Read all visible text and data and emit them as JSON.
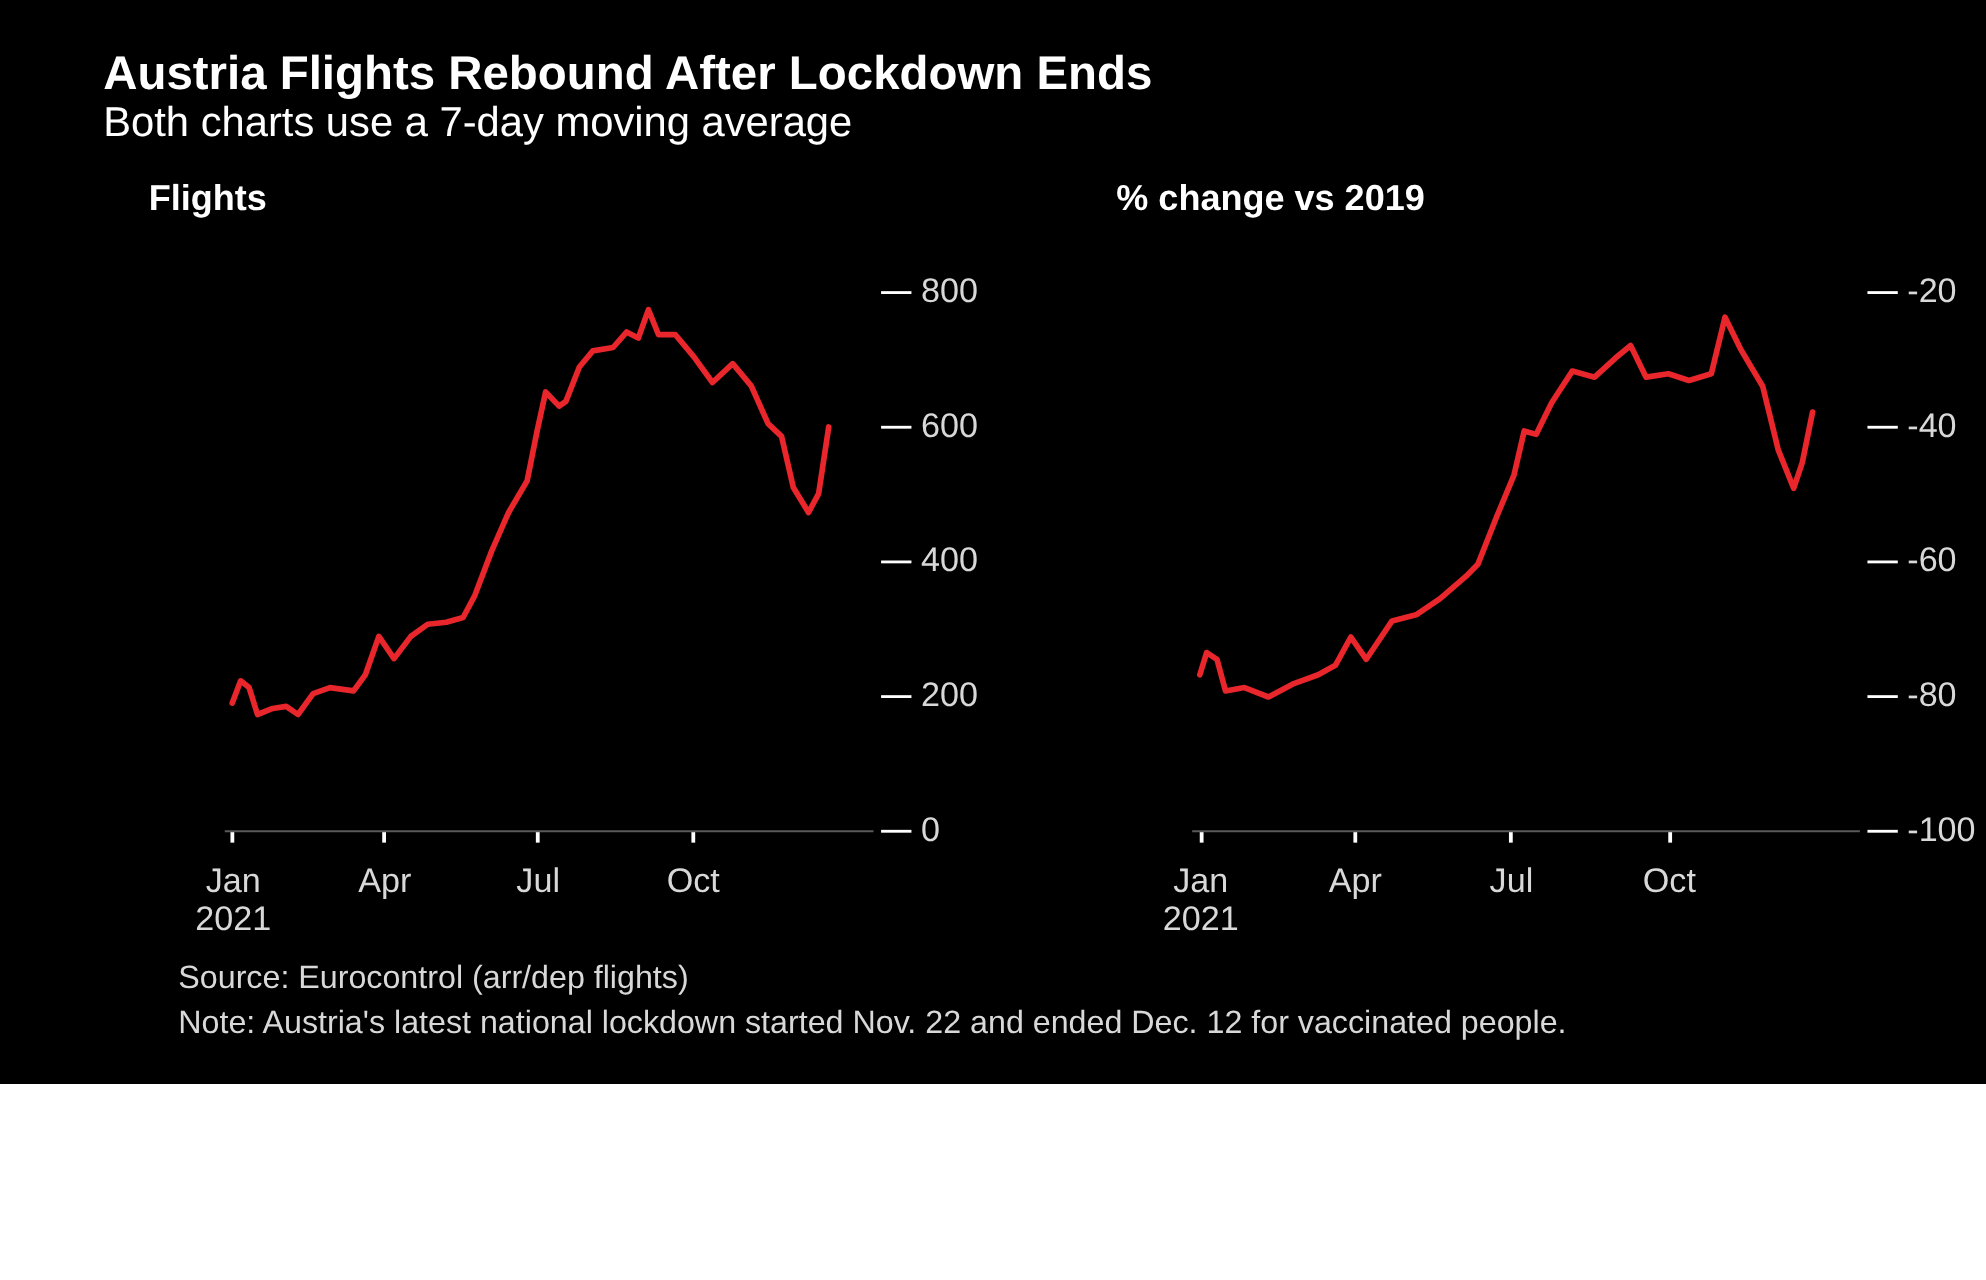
{
  "chart_data": [
    {
      "type": "line",
      "title": "Austria Flights Rebound After Lockdown Ends",
      "subtitle": "Both charts use a 7-day moving average",
      "ylabel": "Flights",
      "annotations": [
        "Source: Eurocontrol (arr/dep flights)",
        "Note: Austria's latest national lockdown started Nov. 22 and ended Dec. 12 for vaccinated people."
      ],
      "x": [
        "2021-01-01",
        "2021-01-06",
        "2021-01-11",
        "2021-01-16",
        "2021-01-25",
        "2021-02-02",
        "2021-02-09",
        "2021-02-18",
        "2021-02-28",
        "2021-03-14",
        "2021-03-21",
        "2021-03-29",
        "2021-04-07",
        "2021-04-17",
        "2021-04-27",
        "2021-05-08",
        "2021-05-18",
        "2021-05-25",
        "2021-06-04",
        "2021-06-14",
        "2021-06-25",
        "2021-07-01",
        "2021-07-06",
        "2021-07-14",
        "2021-07-18",
        "2021-07-26",
        "2021-08-03",
        "2021-08-15",
        "2021-08-23",
        "2021-08-30",
        "2021-09-05",
        "2021-09-11",
        "2021-09-21",
        "2021-10-02",
        "2021-10-13",
        "2021-10-25",
        "2021-11-05",
        "2021-11-15",
        "2021-11-23",
        "2021-11-30",
        "2021-12-09",
        "2021-12-15",
        "2021-12-21"
      ],
      "series": [
        {
          "color": "#e8262b",
          "values": [
            189,
            222,
            212,
            172,
            181,
            184,
            172,
            203,
            212,
            207,
            231,
            288,
            255,
            288,
            306,
            309,
            316,
            349,
            415,
            472,
            519,
            594,
            651,
            630,
            637,
            688,
            712,
            717,
            740,
            731,
            773,
            736,
            736,
            703,
            665,
            693,
            660,
            604,
            585,
            509,
            472,
            500,
            599
          ]
        }
      ],
      "xticks": [
        {
          "value": "2021-01-01",
          "label": "Jan\n2021"
        },
        {
          "value": "2021-04-01",
          "label": "Apr"
        },
        {
          "value": "2021-07-01",
          "label": "Jul"
        },
        {
          "value": "2021-10-01",
          "label": "Oct"
        }
      ],
      "xlim": [
        "2020-12-27",
        "2022-01-16"
      ],
      "ylim": [
        0,
        800
      ],
      "yticks": [
        0,
        200,
        400,
        600,
        800
      ],
      "line_style": "solid"
    },
    {
      "type": "line",
      "ylabel": "% change vs 2019",
      "x": [
        "2021-01-01",
        "2021-01-05",
        "2021-01-11",
        "2021-01-16",
        "2021-01-27",
        "2021-02-10",
        "2021-02-24",
        "2021-03-11",
        "2021-03-21",
        "2021-03-30",
        "2021-04-08",
        "2021-04-23",
        "2021-05-07",
        "2021-05-21",
        "2021-06-05",
        "2021-06-12",
        "2021-06-23",
        "2021-07-03",
        "2021-07-09",
        "2021-07-16",
        "2021-07-25",
        "2021-08-06",
        "2021-08-19",
        "2021-08-31",
        "2021-09-09",
        "2021-09-18",
        "2021-10-01",
        "2021-10-13",
        "2021-10-26",
        "2021-11-03",
        "2021-11-12",
        "2021-11-25",
        "2021-12-04",
        "2021-12-13",
        "2021-12-18",
        "2021-12-24"
      ],
      "series": [
        {
          "color": "#e8262b",
          "values": [
            -76.9,
            -73.6,
            -74.6,
            -79.3,
            -78.8,
            -80.2,
            -78.3,
            -76.9,
            -75.5,
            -71.3,
            -74.6,
            -68.9,
            -68.0,
            -65.6,
            -62.3,
            -60.5,
            -53.4,
            -47.3,
            -40.7,
            -41.2,
            -36.5,
            -31.8,
            -32.7,
            -29.9,
            -28.0,
            -32.7,
            -32.2,
            -33.2,
            -32.2,
            -23.8,
            -28.5,
            -34.1,
            -43.5,
            -49.2,
            -45.4,
            -37.9
          ]
        }
      ],
      "xticks": [
        {
          "value": "2021-01-01",
          "label": "Jan\n2021"
        },
        {
          "value": "2021-04-01",
          "label": "Apr"
        },
        {
          "value": "2021-07-01",
          "label": "Jul"
        },
        {
          "value": "2021-10-01",
          "label": "Oct"
        }
      ],
      "xlim": [
        "2020-12-27",
        "2022-01-20"
      ],
      "ylim": [
        -100,
        -20
      ],
      "yticks": [
        -100,
        -80,
        -60,
        -40,
        -20
      ],
      "line_style": "solid"
    }
  ]
}
